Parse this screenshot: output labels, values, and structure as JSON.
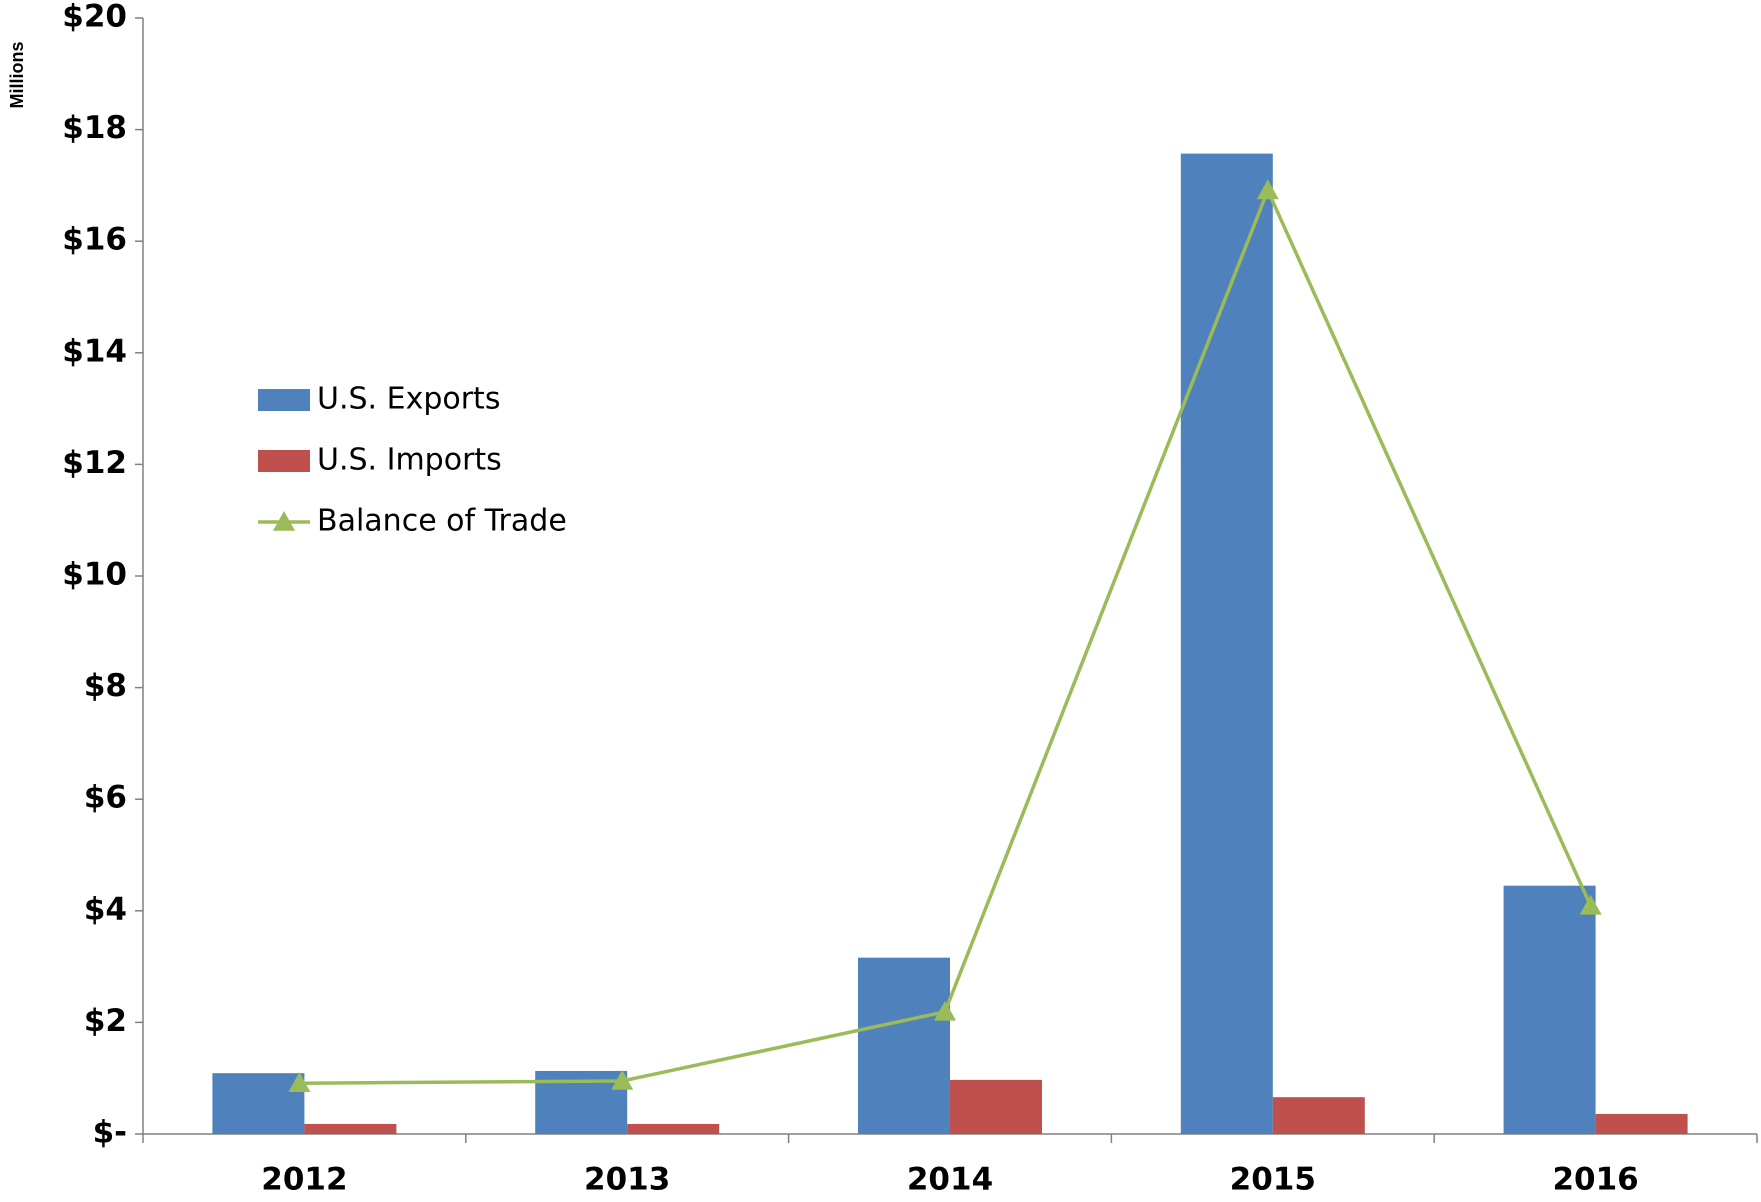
{
  "chart_data": {
    "type": "bar_line",
    "y_axis_label": "Millions",
    "categories": [
      "2012",
      "2013",
      "2014",
      "2015",
      "2016"
    ],
    "series": [
      {
        "name": "U.S. Exports",
        "type": "bar",
        "color": "#4f81bd",
        "values": [
          1.09,
          1.13,
          3.16,
          17.57,
          4.45
        ]
      },
      {
        "name": "U.S. Imports",
        "type": "bar",
        "color": "#c0504d",
        "values": [
          0.18,
          0.18,
          0.97,
          0.66,
          0.36
        ]
      },
      {
        "name": "Balance of Trade",
        "type": "line",
        "color": "#9bbb59",
        "values": [
          0.91,
          0.95,
          2.19,
          16.91,
          4.09
        ]
      }
    ],
    "ylim": [
      0,
      20
    ],
    "yticks": [
      {
        "value": 0,
        "label": "$-"
      },
      {
        "value": 2,
        "label": "$2"
      },
      {
        "value": 4,
        "label": "$4"
      },
      {
        "value": 6,
        "label": "$6"
      },
      {
        "value": 8,
        "label": "$8"
      },
      {
        "value": 10,
        "label": "$10"
      },
      {
        "value": 12,
        "label": "$12"
      },
      {
        "value": 14,
        "label": "$14"
      },
      {
        "value": 16,
        "label": "$16"
      },
      {
        "value": 18,
        "label": "$18"
      },
      {
        "value": 20,
        "label": "$20"
      }
    ],
    "grid": false,
    "legend": "left"
  }
}
